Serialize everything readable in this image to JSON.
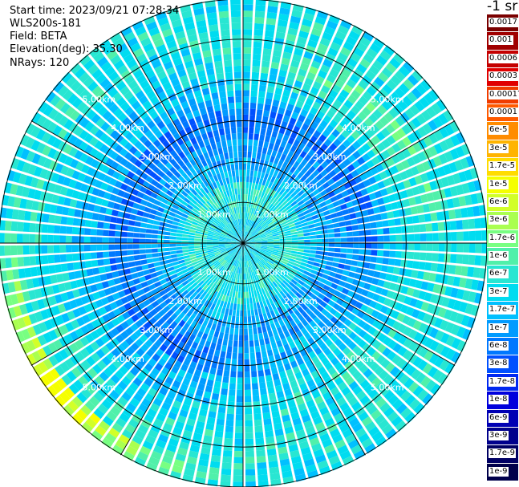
{
  "header": {
    "start_time": "Start time: 2023/09/21 07:28:34",
    "instrument": "WLS200s-181",
    "field": "Field: BETA",
    "elevation": "Elevation(deg): 35.30",
    "nrays": "NRays: 120"
  },
  "colorbar": {
    "unit": "-1 sr",
    "entries": [
      {
        "label": "0.0017",
        "color": "#7a0000"
      },
      {
        "label": "0.001",
        "color": "#a00000"
      },
      {
        "label": "0.0006",
        "color": "#c40000"
      },
      {
        "label": "0.0003",
        "color": "#e00000"
      },
      {
        "label": "0.00017",
        "color": "#f03c00"
      },
      {
        "label": "0.0001",
        "color": "#ff5a00"
      },
      {
        "label": "6e-5",
        "color": "#ff8c00"
      },
      {
        "label": "3e-5",
        "color": "#ffb400"
      },
      {
        "label": "1.7e-5",
        "color": "#ffdc00"
      },
      {
        "label": "1e-5",
        "color": "#f5ff00"
      },
      {
        "label": "6e-6",
        "color": "#d2ff28"
      },
      {
        "label": "3e-6",
        "color": "#aaff50"
      },
      {
        "label": "1.7e-6",
        "color": "#78ff82"
      },
      {
        "label": "1e-6",
        "color": "#50f0aa"
      },
      {
        "label": "6e-7",
        "color": "#28e6d2"
      },
      {
        "label": "3e-7",
        "color": "#00dcf0"
      },
      {
        "label": "1.7e-7",
        "color": "#00c0ff"
      },
      {
        "label": "1e-7",
        "color": "#009bff"
      },
      {
        "label": "6e-8",
        "color": "#0078ff"
      },
      {
        "label": "3e-8",
        "color": "#0050ff"
      },
      {
        "label": "1.7e-8",
        "color": "#0028f0"
      },
      {
        "label": "1e-8",
        "color": "#0000dc"
      },
      {
        "label": "6e-9",
        "color": "#0000b4"
      },
      {
        "label": "3e-9",
        "color": "#00008c"
      },
      {
        "label": "1.7e-9",
        "color": "#000064"
      },
      {
        "label": "1e-9",
        "color": "#00004b"
      }
    ]
  },
  "range_rings": {
    "unit": "km",
    "values": [
      1.0,
      2.0,
      3.0,
      4.0,
      5.0
    ],
    "labels": [
      "1.00km",
      "2.00km",
      "3.00km",
      "4.00km",
      "5.00km"
    ]
  }
}
